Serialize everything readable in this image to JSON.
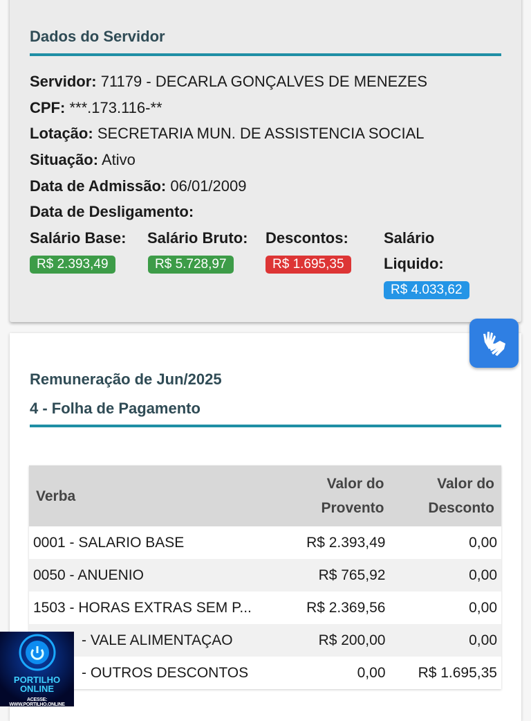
{
  "servidor": {
    "title": "Dados do Servidor",
    "servidor_label": "Servidor:",
    "servidor_value": "71179 - DECARLA GONÇALVES DE MENEZES",
    "cpf_label": "CPF:",
    "cpf_value": "***.173.116-**",
    "lotacao_label": "Lotação:",
    "lotacao_value": "SECRETARIA MUN. DE ASSISTENCIA SOCIAL",
    "situacao_label": "Situação:",
    "situacao_value": "Ativo",
    "admissao_label": "Data de Admissão:",
    "admissao_value": "06/01/2009",
    "desligamento_label": "Data de Desligamento:",
    "base_label": "Salário Base:",
    "base_value": "R$ 2.393,49",
    "bruto_label": "Salário Bruto:",
    "bruto_value": "R$ 5.728,97",
    "descontos_label": "Descontos:",
    "descontos_value": "R$ 1.695,35",
    "liquido_label1": "Salário",
    "liquido_label2": "Liquido:",
    "liquido_value": "R$ 4.033,62"
  },
  "colors": {
    "green": "#3d9c48",
    "red": "#dd3535",
    "blue": "#2495e6",
    "accent": "#1f8fa5"
  },
  "remuneracao": {
    "title": "Remuneração de Jun/2025",
    "subtitle": "4 - Folha de Pagamento",
    "headers": {
      "verba": "Verba",
      "provento1": "Valor do",
      "provento2": "Provento",
      "desconto1": "Valor do",
      "desconto2": "Desconto"
    },
    "rows": [
      {
        "verba": "0001 - SALARIO BASE",
        "provento": "R$ 2.393,49",
        "desconto": "0,00"
      },
      {
        "verba": "0050 - ANUENIO",
        "provento": "R$ 765,92",
        "desconto": "0,00"
      },
      {
        "verba": "1503 - HORAS EXTRAS SEM P...",
        "provento": "R$ 2.369,56",
        "desconto": "0,00"
      },
      {
        "verba": "- VALE ALIMENTAÇAO",
        "provento": "R$ 200,00",
        "desconto": "0,00"
      },
      {
        "verba": "- OUTROS DESCONTOS",
        "provento": "0,00",
        "desconto": "R$ 1.695,35"
      }
    ]
  },
  "accessibility_icon": "sign-language-hands-icon",
  "watermark": {
    "line1": "PORTILHO",
    "line2": "ONLINE",
    "line3": "ACESSE: WWW.PORTILHO.ONLINE"
  }
}
